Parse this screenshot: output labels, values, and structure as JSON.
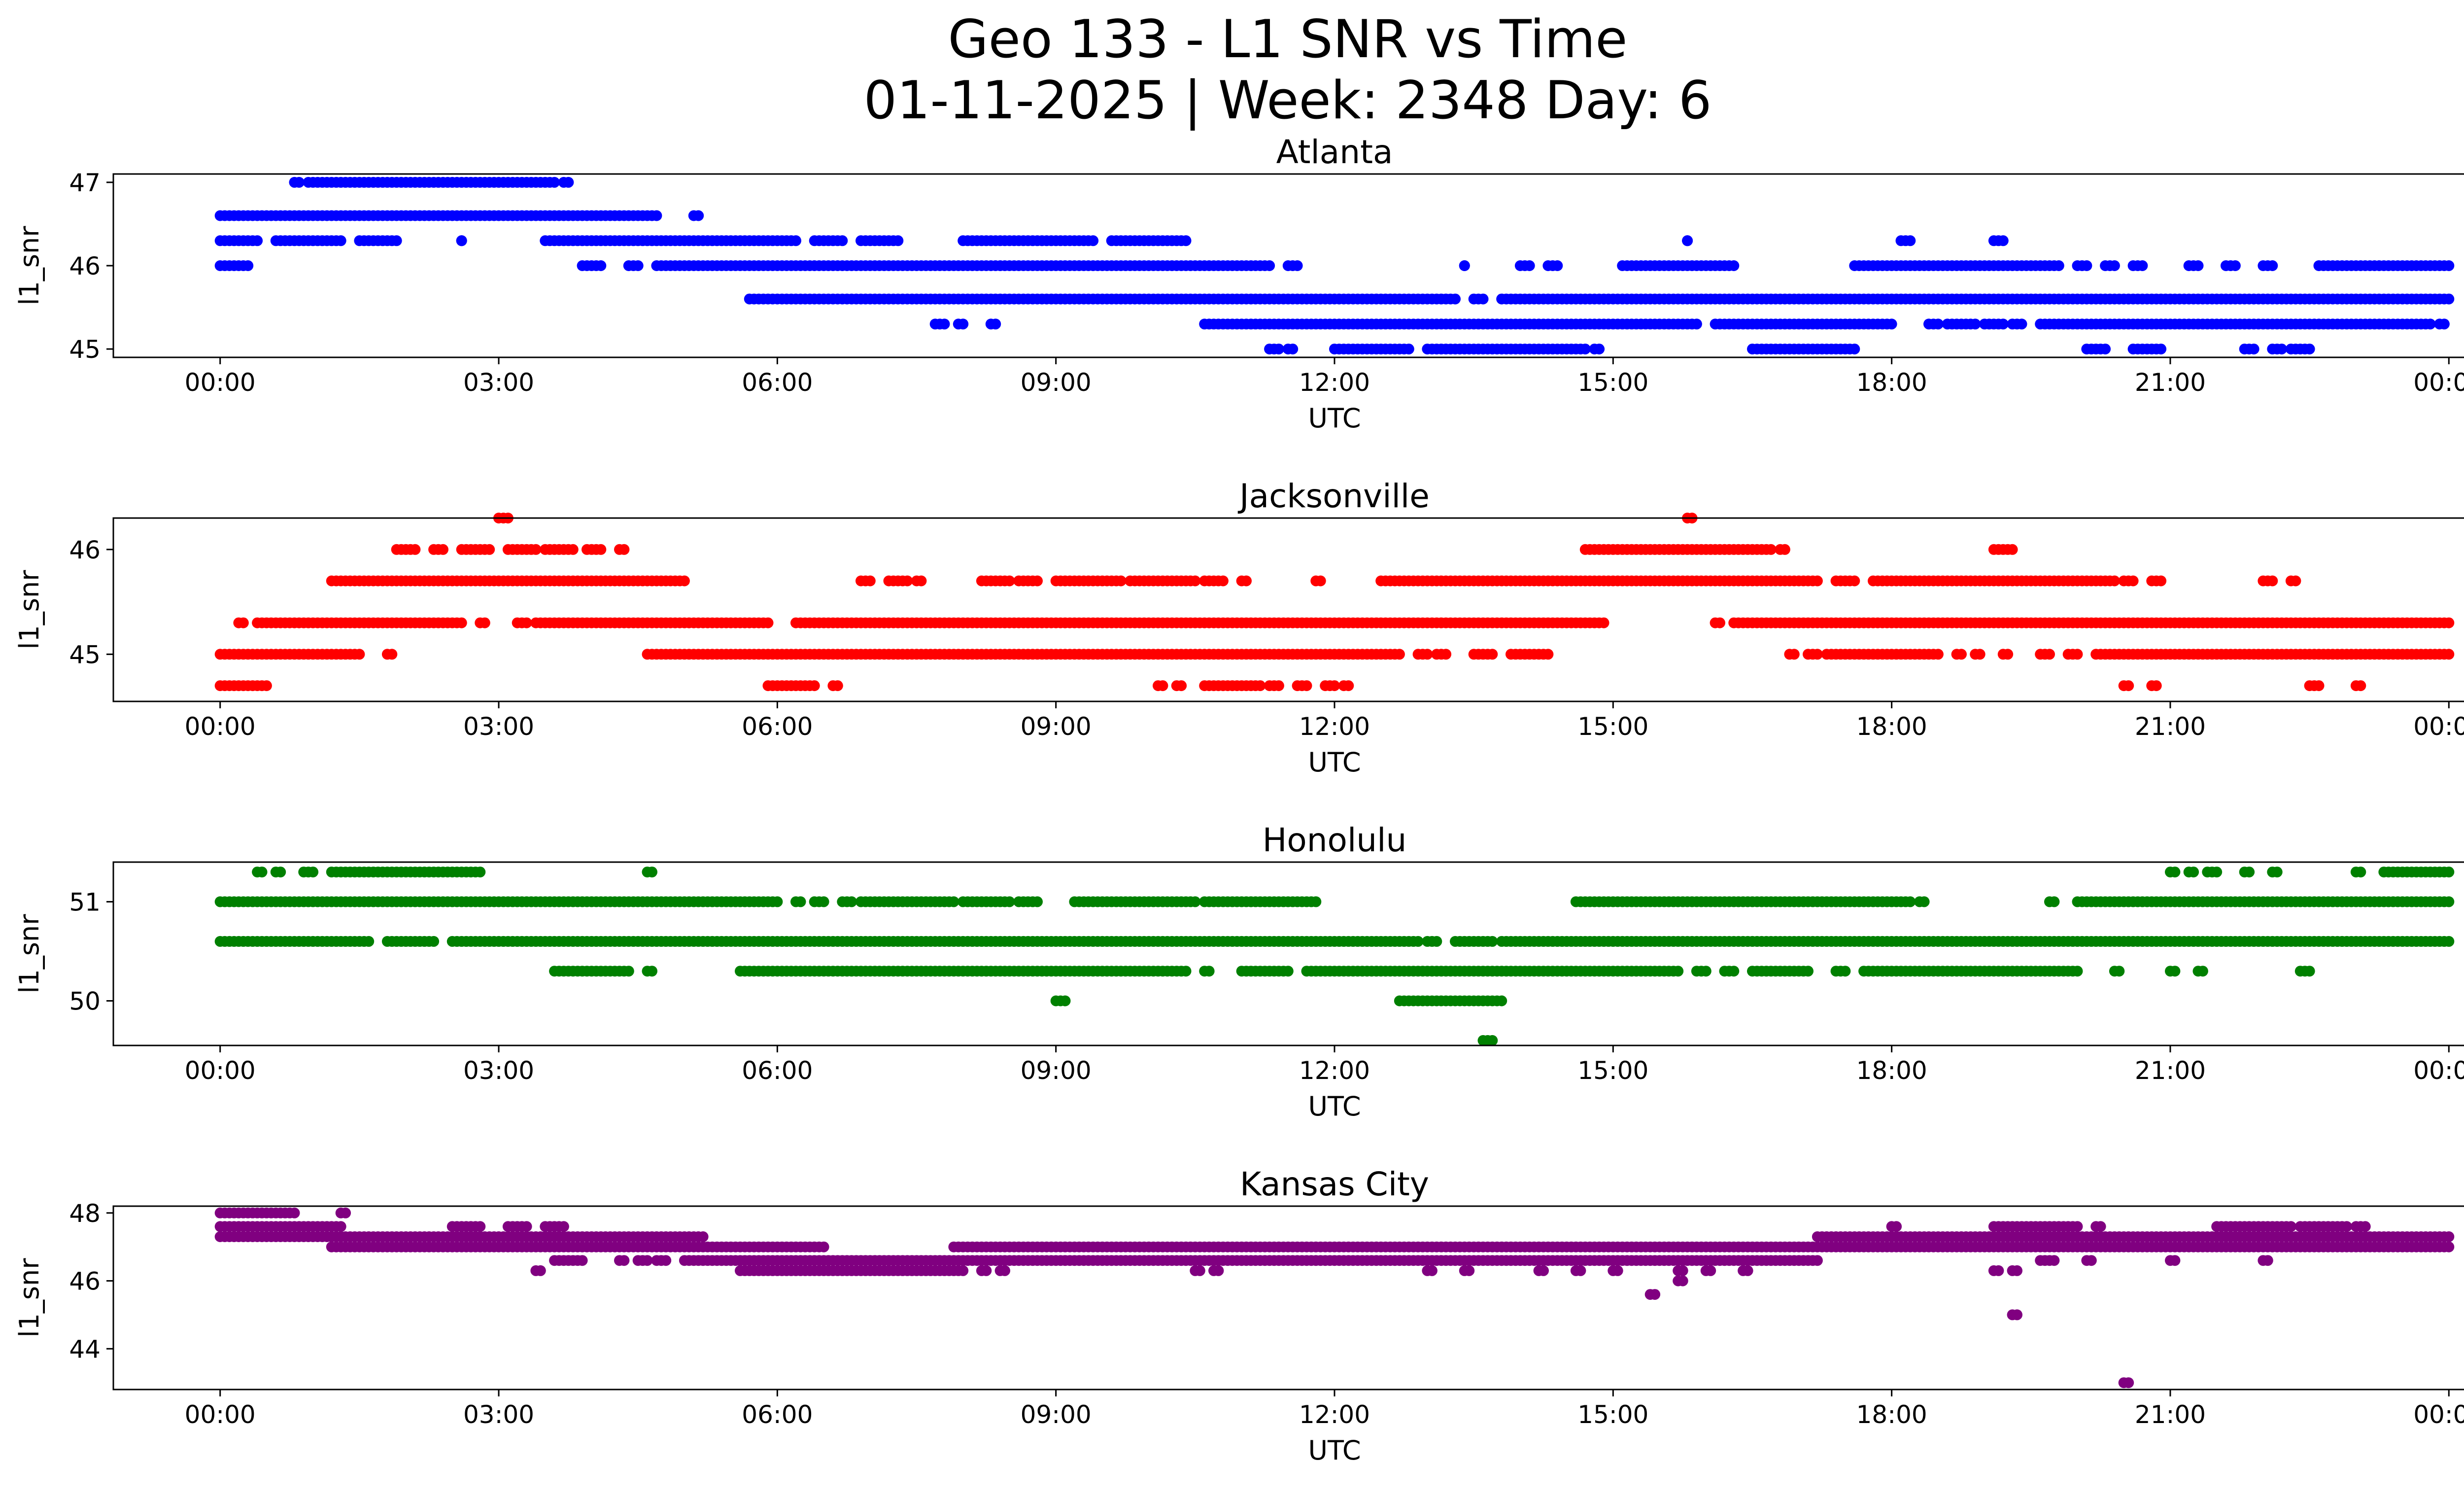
{
  "title": "Geo 133 - L1 SNR vs Time",
  "subtitle": "01-11-2025 | Week: 2348 Day: 6",
  "chart_data": [
    {
      "type": "scatter",
      "title": "Atlanta",
      "xlabel": "UTC",
      "ylabel": "l1_snr",
      "color": "#0000ff",
      "x_ticks": [
        "00:00",
        "03:00",
        "06:00",
        "09:00",
        "12:00",
        "15:00",
        "18:00",
        "21:00",
        "00:00"
      ],
      "xlim_hours": [
        -1.15,
        25.15
      ],
      "ylim": [
        44.9,
        47.1
      ],
      "y_ticks": [
        45,
        46,
        47
      ],
      "segments": [
        {
          "y": 47.0,
          "ranges": [
            [
              0.8,
              0.85
            ],
            [
              0.95,
              3.6
            ],
            [
              3.7,
              3.75
            ]
          ]
        },
        {
          "y": 46.6,
          "ranges": [
            [
              0.0,
              4.7
            ],
            [
              5.1,
              5.15
            ]
          ]
        },
        {
          "y": 46.3,
          "ranges": [
            [
              0.0,
              0.4
            ],
            [
              0.6,
              1.3
            ],
            [
              1.5,
              1.9
            ],
            [
              2.6,
              2.6
            ],
            [
              3.5,
              6.2
            ],
            [
              6.4,
              6.7
            ],
            [
              6.9,
              7.3
            ],
            [
              8.0,
              9.4
            ],
            [
              9.6,
              10.4
            ],
            [
              15.8,
              15.8
            ],
            [
              18.1,
              18.2
            ],
            [
              19.1,
              19.2
            ]
          ]
        },
        {
          "y": 46.0,
          "ranges": [
            [
              0.0,
              0.3
            ],
            [
              3.9,
              4.1
            ],
            [
              4.4,
              4.5
            ],
            [
              4.7,
              11.3
            ],
            [
              11.5,
              11.6
            ],
            [
              13.4,
              13.4
            ],
            [
              14.0,
              14.1
            ],
            [
              14.3,
              14.4
            ],
            [
              15.1,
              16.3
            ],
            [
              17.6,
              19.8
            ],
            [
              20.0,
              20.1
            ],
            [
              20.3,
              20.4
            ],
            [
              20.6,
              20.7
            ],
            [
              21.2,
              21.3
            ],
            [
              21.6,
              21.7
            ],
            [
              22.0,
              22.1
            ],
            [
              22.6,
              24.0
            ]
          ]
        },
        {
          "y": 45.6,
          "ranges": [
            [
              5.7,
              13.3
            ],
            [
              13.5,
              13.6
            ],
            [
              13.8,
              24.0
            ]
          ]
        },
        {
          "y": 45.3,
          "ranges": [
            [
              7.7,
              7.8
            ],
            [
              7.95,
              8.0
            ],
            [
              8.3,
              8.35
            ],
            [
              10.6,
              15.9
            ],
            [
              16.1,
              18.0
            ],
            [
              18.4,
              18.5
            ],
            [
              18.6,
              18.9
            ],
            [
              19.0,
              19.2
            ],
            [
              19.3,
              19.4
            ],
            [
              19.6,
              23.8
            ],
            [
              23.9,
              23.95
            ]
          ]
        },
        {
          "y": 45.0,
          "ranges": [
            [
              11.3,
              11.4
            ],
            [
              11.5,
              11.55
            ],
            [
              12.0,
              12.8
            ],
            [
              13.0,
              14.7
            ],
            [
              14.8,
              14.85
            ],
            [
              16.5,
              17.6
            ],
            [
              20.1,
              20.3
            ],
            [
              20.6,
              20.9
            ],
            [
              21.8,
              21.9
            ],
            [
              22.1,
              22.2
            ],
            [
              22.3,
              22.5
            ]
          ]
        }
      ]
    },
    {
      "type": "scatter",
      "title": "Jacksonville",
      "xlabel": "UTC",
      "ylabel": "l1_snr",
      "color": "#ff0000",
      "x_ticks": [
        "00:00",
        "03:00",
        "06:00",
        "09:00",
        "12:00",
        "15:00",
        "18:00",
        "21:00",
        "00:00"
      ],
      "xlim_hours": [
        -1.15,
        25.15
      ],
      "ylim": [
        44.55,
        46.3
      ],
      "y_ticks": [
        45,
        46
      ],
      "segments": [
        {
          "y": 46.3,
          "ranges": [
            [
              3.0,
              3.1
            ],
            [
              15.8,
              15.85
            ]
          ]
        },
        {
          "y": 46.0,
          "ranges": [
            [
              1.9,
              2.1
            ],
            [
              2.3,
              2.4
            ],
            [
              2.6,
              2.9
            ],
            [
              3.1,
              3.4
            ],
            [
              3.5,
              3.8
            ],
            [
              3.95,
              4.1
            ],
            [
              4.3,
              4.35
            ],
            [
              14.7,
              16.7
            ],
            [
              16.8,
              16.85
            ],
            [
              19.1,
              19.3
            ]
          ]
        },
        {
          "y": 45.7,
          "ranges": [
            [
              1.2,
              5.0
            ],
            [
              6.9,
              7.0
            ],
            [
              7.2,
              7.4
            ],
            [
              7.5,
              7.55
            ],
            [
              8.2,
              8.5
            ],
            [
              8.6,
              8.8
            ],
            [
              9.0,
              9.7
            ],
            [
              9.8,
              10.5
            ],
            [
              10.6,
              10.8
            ],
            [
              11.0,
              11.05
            ],
            [
              11.8,
              11.85
            ],
            [
              12.5,
              17.2
            ],
            [
              17.4,
              17.6
            ],
            [
              17.8,
              20.4
            ],
            [
              20.5,
              20.6
            ],
            [
              20.8,
              20.9
            ],
            [
              22.0,
              22.1
            ],
            [
              22.3,
              22.35
            ]
          ]
        },
        {
          "y": 45.3,
          "ranges": [
            [
              0.2,
              0.25
            ],
            [
              0.4,
              2.6
            ],
            [
              2.8,
              2.85
            ],
            [
              3.2,
              3.3
            ],
            [
              3.4,
              5.9
            ],
            [
              6.2,
              14.9
            ],
            [
              16.1,
              16.15
            ],
            [
              16.3,
              24.0
            ]
          ]
        },
        {
          "y": 45.0,
          "ranges": [
            [
              0.0,
              1.5
            ],
            [
              1.8,
              1.85
            ],
            [
              4.6,
              12.7
            ],
            [
              12.9,
              13.0
            ],
            [
              13.1,
              13.2
            ],
            [
              13.5,
              13.7
            ],
            [
              13.9,
              14.3
            ],
            [
              16.9,
              16.95
            ],
            [
              17.1,
              17.2
            ],
            [
              17.3,
              18.5
            ],
            [
              18.7,
              18.75
            ],
            [
              18.9,
              18.95
            ],
            [
              19.2,
              19.25
            ],
            [
              19.6,
              19.7
            ],
            [
              19.9,
              20.0
            ],
            [
              20.2,
              24.0
            ]
          ]
        },
        {
          "y": 44.7,
          "ranges": [
            [
              0.0,
              0.5
            ],
            [
              5.9,
              6.4
            ],
            [
              6.6,
              6.65
            ],
            [
              10.1,
              10.15
            ],
            [
              10.3,
              10.35
            ],
            [
              10.6,
              11.2
            ],
            [
              11.3,
              11.4
            ],
            [
              11.6,
              11.7
            ],
            [
              11.9,
              12.0
            ],
            [
              12.1,
              12.15
            ],
            [
              20.5,
              20.55
            ],
            [
              20.8,
              20.85
            ],
            [
              22.5,
              22.6
            ],
            [
              23.0,
              23.05
            ]
          ]
        }
      ]
    },
    {
      "type": "scatter",
      "title": "Honolulu",
      "xlabel": "UTC",
      "ylabel": "l1_snr",
      "color": "#008000",
      "x_ticks": [
        "00:00",
        "03:00",
        "06:00",
        "09:00",
        "12:00",
        "15:00",
        "18:00",
        "21:00",
        "00:00"
      ],
      "xlim_hours": [
        -1.15,
        25.15
      ],
      "ylim": [
        49.55,
        51.4
      ],
      "y_ticks": [
        50,
        51
      ],
      "segments": [
        {
          "y": 51.3,
          "ranges": [
            [
              0.4,
              0.45
            ],
            [
              0.6,
              0.65
            ],
            [
              0.9,
              1.0
            ],
            [
              1.2,
              2.8
            ],
            [
              4.6,
              4.65
            ],
            [
              21.0,
              21.05
            ],
            [
              21.2,
              21.25
            ],
            [
              21.4,
              21.5
            ],
            [
              21.8,
              21.85
            ],
            [
              22.1,
              22.15
            ],
            [
              23.0,
              23.05
            ],
            [
              23.3,
              24.0
            ]
          ]
        },
        {
          "y": 51.0,
          "ranges": [
            [
              0.0,
              6.0
            ],
            [
              6.2,
              6.25
            ],
            [
              6.4,
              6.5
            ],
            [
              6.7,
              6.8
            ],
            [
              6.9,
              7.9
            ],
            [
              8.0,
              8.5
            ],
            [
              8.6,
              8.8
            ],
            [
              9.2,
              10.5
            ],
            [
              10.6,
              11.8
            ],
            [
              14.6,
              18.2
            ],
            [
              18.3,
              18.35
            ],
            [
              19.7,
              19.75
            ],
            [
              20.0,
              24.0
            ]
          ]
        },
        {
          "y": 50.6,
          "ranges": [
            [
              0.0,
              1.6
            ],
            [
              1.8,
              2.3
            ],
            [
              2.5,
              2.55
            ],
            [
              2.6,
              12.9
            ],
            [
              13.0,
              13.1
            ],
            [
              13.3,
              13.7
            ],
            [
              13.8,
              24.0
            ]
          ]
        },
        {
          "y": 50.3,
          "ranges": [
            [
              3.6,
              4.4
            ],
            [
              4.6,
              4.65
            ],
            [
              5.6,
              10.4
            ],
            [
              10.6,
              10.65
            ],
            [
              11.0,
              11.5
            ],
            [
              11.7,
              15.7
            ],
            [
              15.9,
              16.0
            ],
            [
              16.2,
              16.3
            ],
            [
              16.5,
              17.1
            ],
            [
              17.4,
              17.5
            ],
            [
              17.7,
              20.0
            ],
            [
              20.4,
              20.45
            ],
            [
              21.0,
              21.05
            ],
            [
              21.3,
              21.35
            ],
            [
              22.4,
              22.5
            ]
          ]
        },
        {
          "y": 50.0,
          "ranges": [
            [
              9.0,
              9.1
            ],
            [
              12.7,
              13.8
            ]
          ]
        },
        {
          "y": 49.6,
          "ranges": [
            [
              13.6,
              13.7
            ]
          ]
        }
      ]
    },
    {
      "type": "scatter",
      "title": "Kansas City",
      "xlabel": "UTC",
      "ylabel": "l1_snr",
      "color": "#800080",
      "x_ticks": [
        "00:00",
        "03:00",
        "06:00",
        "09:00",
        "12:00",
        "15:00",
        "18:00",
        "21:00",
        "00:00"
      ],
      "xlim_hours": [
        -1.15,
        25.15
      ],
      "ylim": [
        42.8,
        48.2
      ],
      "y_ticks": [
        44,
        46,
        48
      ],
      "segments": [
        {
          "y": 48.0,
          "ranges": [
            [
              0.0,
              0.8
            ],
            [
              1.3,
              1.35
            ]
          ]
        },
        {
          "y": 47.6,
          "ranges": [
            [
              0.0,
              1.3
            ],
            [
              2.5,
              2.8
            ],
            [
              3.1,
              3.3
            ],
            [
              3.5,
              3.7
            ],
            [
              18.0,
              18.05
            ],
            [
              19.1,
              20.0
            ],
            [
              20.2,
              20.25
            ],
            [
              21.5,
              22.3
            ],
            [
              22.4,
              22.9
            ],
            [
              23.0,
              23.1
            ]
          ]
        },
        {
          "y": 47.3,
          "ranges": [
            [
              0.0,
              5.2
            ],
            [
              17.2,
              24.0
            ]
          ]
        },
        {
          "y": 47.0,
          "ranges": [
            [
              1.2,
              6.5
            ],
            [
              7.9,
              24.0
            ]
          ]
        },
        {
          "y": 46.6,
          "ranges": [
            [
              3.6,
              3.9
            ],
            [
              4.3,
              4.35
            ],
            [
              4.5,
              4.6
            ],
            [
              4.7,
              4.8
            ],
            [
              5.0,
              17.2
            ],
            [
              19.6,
              19.65
            ],
            [
              19.7,
              19.75
            ],
            [
              20.1,
              20.15
            ],
            [
              21.0,
              21.05
            ],
            [
              22.0,
              22.05
            ]
          ]
        },
        {
          "y": 46.3,
          "ranges": [
            [
              3.4,
              3.45
            ],
            [
              5.6,
              8.0
            ],
            [
              8.2,
              8.25
            ],
            [
              8.4,
              8.45
            ],
            [
              10.5,
              10.55
            ],
            [
              10.7,
              10.75
            ],
            [
              13.0,
              13.05
            ],
            [
              13.4,
              13.45
            ],
            [
              14.2,
              14.25
            ],
            [
              14.6,
              14.65
            ],
            [
              15.0,
              15.05
            ],
            [
              15.7,
              15.75
            ],
            [
              16.0,
              16.05
            ],
            [
              16.4,
              16.45
            ],
            [
              19.1,
              19.15
            ],
            [
              19.3,
              19.35
            ]
          ]
        },
        {
          "y": 46.0,
          "ranges": [
            [
              15.7,
              15.75
            ]
          ]
        },
        {
          "y": 45.6,
          "ranges": [
            [
              15.4,
              15.45
            ]
          ]
        },
        {
          "y": 45.0,
          "ranges": [
            [
              19.3,
              19.35
            ]
          ]
        },
        {
          "y": 43.0,
          "ranges": [
            [
              20.5,
              20.55
            ]
          ]
        }
      ]
    }
  ]
}
